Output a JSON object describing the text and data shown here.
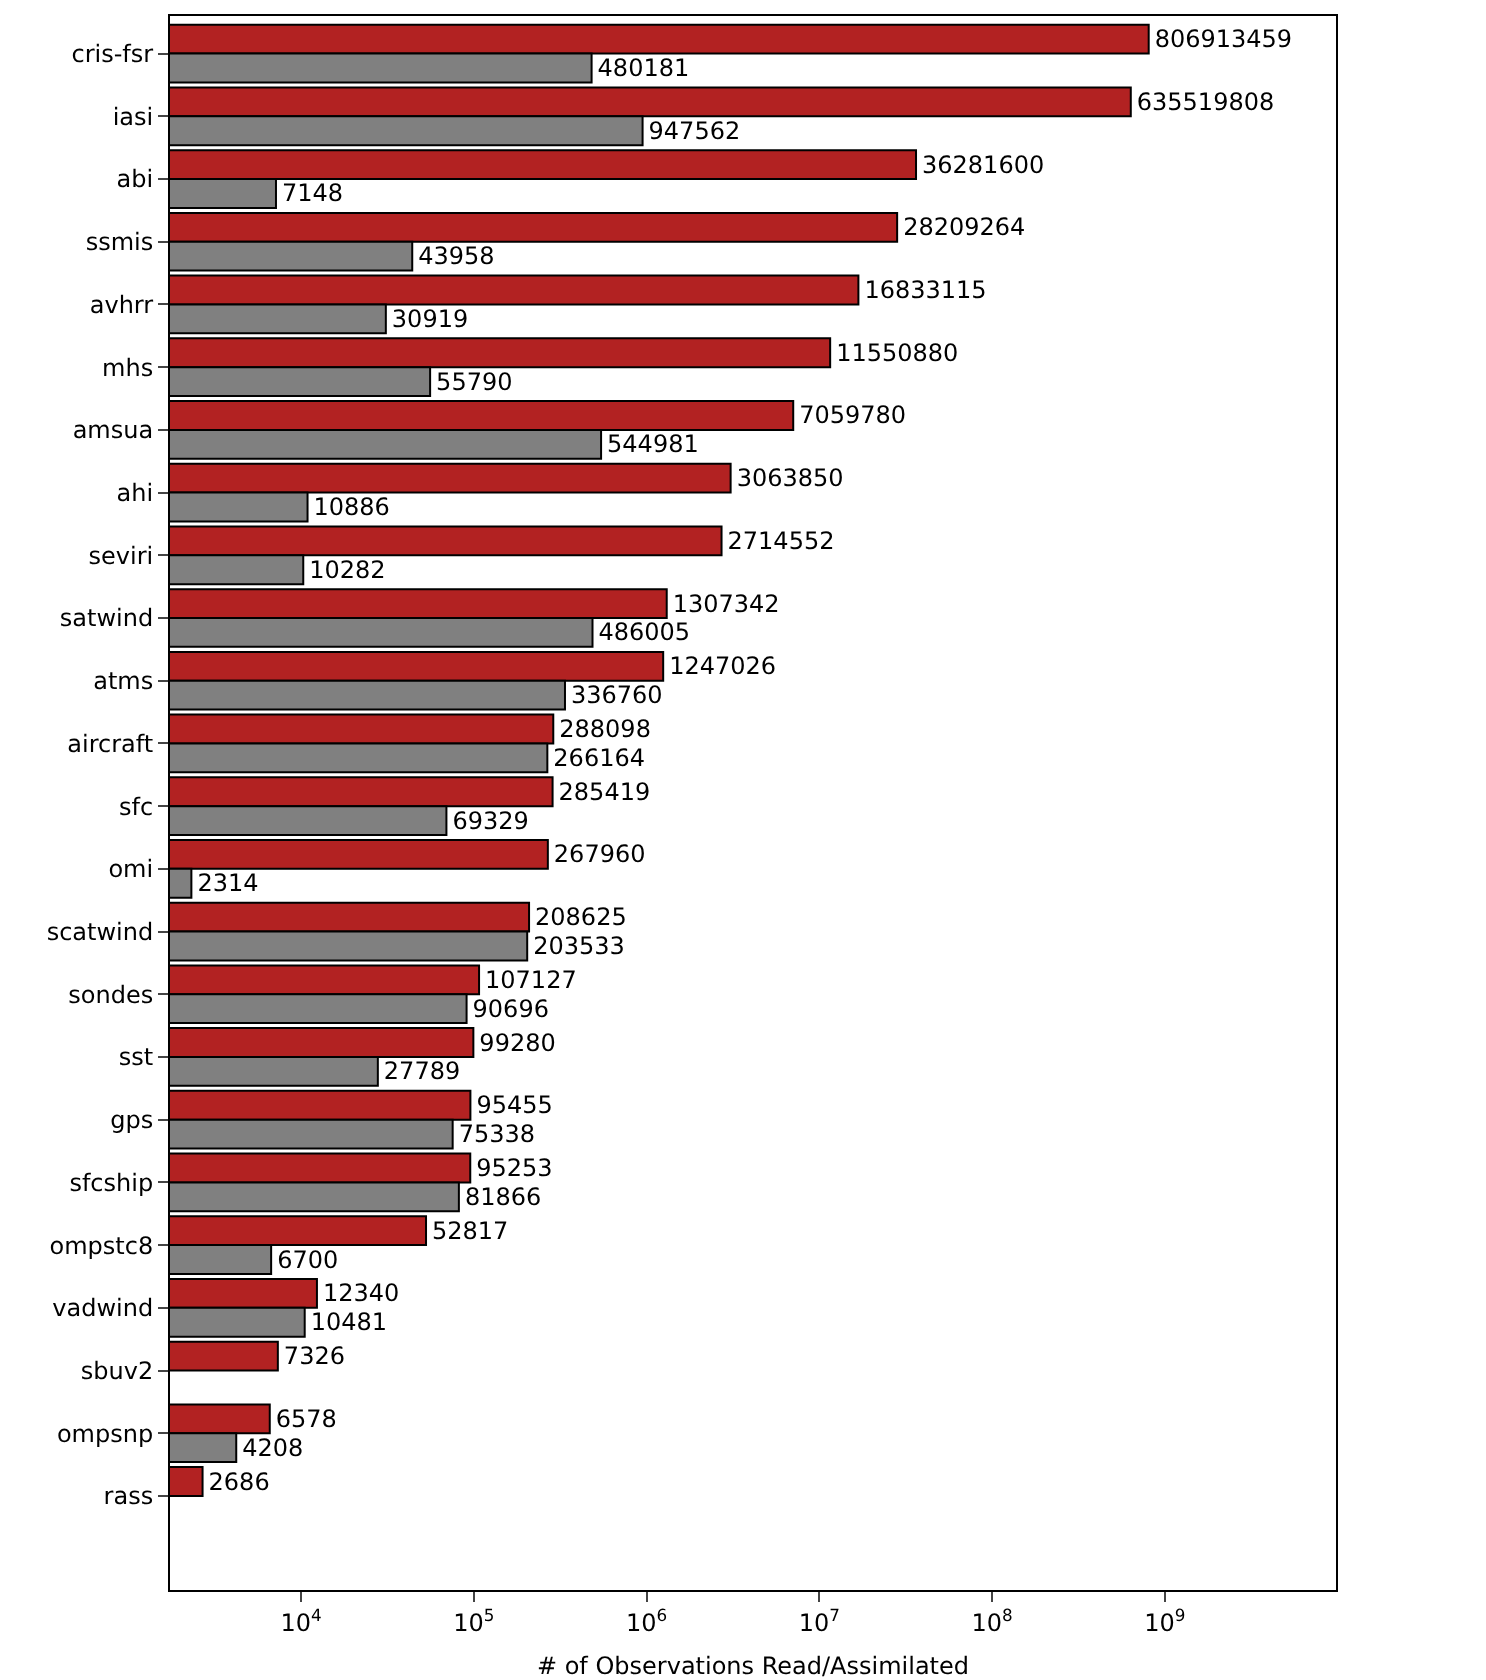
{
  "chart_data": {
    "type": "bar",
    "orientation": "horizontal",
    "log": "x",
    "xlabel": "# of Observations Read/Assimilated",
    "categories": [
      "cris-fsr",
      "iasi",
      "abi",
      "ssmis",
      "avhrr",
      "mhs",
      "amsua",
      "ahi",
      "seviri",
      "satwind",
      "atms",
      "aircraft",
      "sfc",
      "omi",
      "scatwind",
      "sondes",
      "sst",
      "gps",
      "sfcship",
      "ompstc8",
      "vadwind",
      "sbuv2",
      "ompsnp",
      "rass"
    ],
    "series": [
      {
        "color": "#b22222",
        "values": [
          806913459,
          635519808,
          36281600,
          28209264,
          16833115,
          11550880,
          7059780,
          3063850,
          2714552,
          1307342,
          1247026,
          288098,
          285419,
          267960,
          208625,
          107127,
          99280,
          95455,
          95253,
          52817,
          12340,
          7326,
          6578,
          2686
        ]
      },
      {
        "color": "#808080",
        "values": [
          480181,
          947562,
          7148,
          43958,
          30919,
          55790,
          544981,
          10886,
          10282,
          486005,
          336760,
          266164,
          69329,
          2314,
          203533,
          90696,
          27789,
          75338,
          81866,
          6700,
          10481,
          null,
          4208,
          null
        ]
      }
    ],
    "xlim": [
      1740,
      9800000000
    ],
    "xticks": [
      {
        "value": 10000,
        "label": "10$^{4}$"
      },
      {
        "value": 100000,
        "label": "10$^{5}$"
      },
      {
        "value": 1000000,
        "label": "10$^{6}$"
      },
      {
        "value": 10000000,
        "label": "10$^{7}$"
      },
      {
        "value": 100000000,
        "label": "10$^{8}$"
      },
      {
        "value": 1000000000,
        "label": "10$^{9}$"
      }
    ],
    "data_labels": true,
    "grid": false
  }
}
